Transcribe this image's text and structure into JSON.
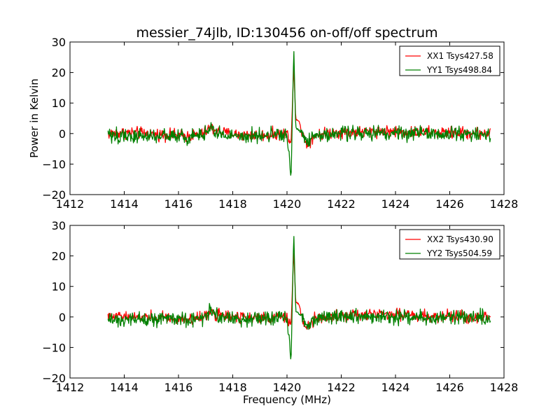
{
  "chart_data": [
    {
      "type": "line",
      "title": "messier_74jlb, ID:130456 on-off/off spectrum",
      "xlabel": "",
      "ylabel": "Power in Kelvin",
      "xlim": [
        1412,
        1428
      ],
      "ylim": [
        -20,
        30
      ],
      "xticks": [
        "1412",
        "1414",
        "1416",
        "1418",
        "1420",
        "1422",
        "1424",
        "1426",
        "1428"
      ],
      "yticks": [
        "−20",
        "−10",
        "0",
        "10",
        "20",
        "30"
      ],
      "legend": "top-right",
      "grid": false,
      "x_range": [
        1413.4,
        1427.5
      ],
      "series": [
        {
          "name": "XX1 Tsys427.58",
          "color": "#ff0000",
          "x": [
            1413.4,
            1414.0,
            1414.6,
            1415.2,
            1415.8,
            1416.4,
            1416.9,
            1417.15,
            1417.4,
            1417.8,
            1418.4,
            1419.0,
            1419.6,
            1420.0,
            1420.15,
            1420.25,
            1420.32,
            1420.45,
            1420.6,
            1420.75,
            1421.0,
            1421.6,
            1422.2,
            1422.8,
            1423.4,
            1424.0,
            1424.6,
            1425.2,
            1425.8,
            1426.4,
            1427.0,
            1427.5
          ],
          "values": [
            0.0,
            0.3,
            0.2,
            -0.2,
            -0.5,
            -0.8,
            0.0,
            1.8,
            1.0,
            0.0,
            -0.4,
            -0.6,
            -0.2,
            0.0,
            -3.0,
            22.0,
            5.0,
            4.0,
            -1.0,
            -3.5,
            -0.5,
            0.3,
            0.5,
            0.6,
            0.8,
            0.7,
            0.5,
            0.4,
            0.3,
            0.2,
            0.2,
            0.0
          ]
        },
        {
          "name": "YY1 Tsys498.84",
          "color": "#008000",
          "x": [
            1413.4,
            1414.0,
            1414.6,
            1415.2,
            1415.8,
            1416.4,
            1416.9,
            1417.15,
            1417.4,
            1417.8,
            1418.4,
            1419.0,
            1419.6,
            1420.0,
            1420.15,
            1420.25,
            1420.32,
            1420.45,
            1420.6,
            1420.75,
            1421.0,
            1421.6,
            1422.2,
            1422.8,
            1423.4,
            1424.0,
            1424.6,
            1425.2,
            1425.8,
            1426.4,
            1427.0,
            1427.5
          ],
          "values": [
            -0.5,
            -0.8,
            -1.0,
            -1.0,
            -0.8,
            -1.0,
            -0.5,
            2.0,
            0.5,
            -0.5,
            -1.0,
            -0.8,
            -0.5,
            -0.3,
            -15.0,
            28.0,
            2.0,
            1.0,
            -0.5,
            -3.0,
            -0.8,
            -0.3,
            0.0,
            0.2,
            0.3,
            0.2,
            0.0,
            -0.2,
            -0.3,
            -0.3,
            0.0,
            -0.3
          ]
        }
      ]
    },
    {
      "type": "line",
      "title": "",
      "xlabel": "Frequency (MHz)",
      "ylabel": "",
      "xlim": [
        1412,
        1428
      ],
      "ylim": [
        -20,
        30
      ],
      "xticks": [
        "1412",
        "1414",
        "1416",
        "1418",
        "1420",
        "1422",
        "1424",
        "1426",
        "1428"
      ],
      "yticks": [
        "−20",
        "−10",
        "0",
        "10",
        "20",
        "30"
      ],
      "legend": "top-right",
      "grid": false,
      "x_range": [
        1413.4,
        1427.5
      ],
      "series": [
        {
          "name": "XX2 Tsys430.90",
          "color": "#ff0000",
          "x": [
            1413.4,
            1414.0,
            1414.6,
            1415.2,
            1415.8,
            1416.4,
            1416.9,
            1417.15,
            1417.4,
            1417.8,
            1418.4,
            1419.0,
            1419.6,
            1420.0,
            1420.15,
            1420.25,
            1420.32,
            1420.45,
            1420.6,
            1420.75,
            1421.0,
            1421.6,
            1422.2,
            1422.8,
            1423.4,
            1424.0,
            1424.6,
            1425.2,
            1425.8,
            1426.4,
            1427.0,
            1427.5
          ],
          "values": [
            0.0,
            0.3,
            0.2,
            -0.2,
            -0.5,
            -0.8,
            0.0,
            1.8,
            1.0,
            0.0,
            -0.4,
            -0.6,
            -0.2,
            0.0,
            -3.0,
            22.0,
            5.0,
            4.0,
            -1.0,
            -3.5,
            -0.5,
            0.3,
            0.5,
            0.6,
            0.8,
            0.7,
            0.5,
            0.4,
            0.3,
            0.2,
            0.2,
            0.0
          ]
        },
        {
          "name": "YY2 Tsys504.59",
          "color": "#008000",
          "x": [
            1413.4,
            1414.0,
            1414.6,
            1415.2,
            1415.8,
            1416.4,
            1416.9,
            1417.15,
            1417.4,
            1417.8,
            1418.4,
            1419.0,
            1419.6,
            1420.0,
            1420.15,
            1420.25,
            1420.32,
            1420.45,
            1420.6,
            1420.75,
            1421.0,
            1421.6,
            1422.2,
            1422.8,
            1423.4,
            1424.0,
            1424.6,
            1425.2,
            1425.8,
            1426.4,
            1427.0,
            1427.5
          ],
          "values": [
            -0.5,
            -0.8,
            -1.0,
            -1.0,
            -0.8,
            -1.0,
            -0.5,
            2.0,
            0.5,
            -0.5,
            -1.0,
            -0.8,
            -0.5,
            -0.3,
            -15.0,
            28.0,
            2.0,
            1.0,
            -0.5,
            -3.0,
            -0.8,
            -0.3,
            0.0,
            0.2,
            0.3,
            0.2,
            0.0,
            -0.2,
            -0.3,
            -0.3,
            0.0,
            -0.3
          ]
        }
      ]
    }
  ]
}
